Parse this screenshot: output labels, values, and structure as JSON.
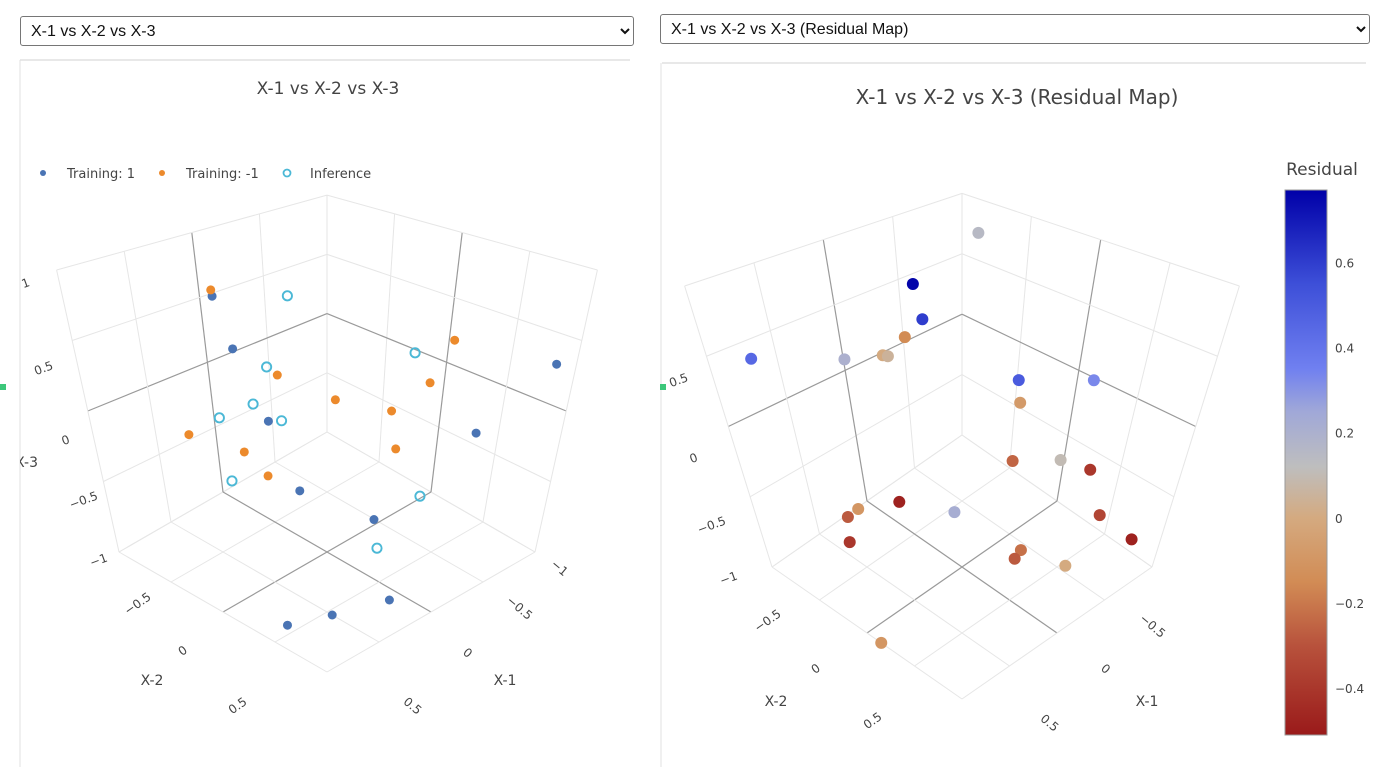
{
  "left_panel": {
    "dropdown_value": "X-1 vs X-2 vs X-3",
    "legend": [
      "Training: 1",
      "Training: -1",
      "Inference"
    ]
  },
  "right_panel": {
    "dropdown_value": "X-1 vs X-2 vs X-3 (Residual Map)",
    "colorbar_title": "Residual"
  },
  "colors": {
    "training_1": "#4a74b4",
    "training_neg1": "#ec8a2c",
    "inference": "#4bb8d6"
  },
  "chart_data": [
    {
      "type": "scatter",
      "projection": "3d",
      "title": "X-1 vs X-2 vs X-3",
      "xlabel": "X-1",
      "ylabel": "X-2",
      "zlabel": "X-3",
      "xlim": [
        -1,
        1
      ],
      "ylim": [
        -1,
        1
      ],
      "zlim": [
        -1,
        1
      ],
      "grid": true,
      "legend_position": "top-left",
      "x_ticks": [
        "−1",
        "−0.5",
        "0",
        "0.5"
      ],
      "y_ticks": [
        "−0.5",
        "0",
        "0.5"
      ],
      "z_ticks": [
        "1",
        "0.5",
        "0",
        "−0.5",
        "−1"
      ],
      "series": [
        {
          "name": "Training: 1",
          "marker": "filled-circle",
          "x": [
            0.41,
            0.31,
            0.35,
            0.34,
            0.14,
            0.1,
            0.5,
            0.8,
            -0.7,
            -0.99
          ],
          "y": [
            -0.46,
            -0.44,
            -0.14,
            0.1,
            0.56,
            0.7,
            0.55,
            0.42,
            0.58,
            0.86
          ],
          "z": [
            0.8,
            0.4,
            0,
            -0.4,
            -0.5,
            -1,
            -1,
            -1,
            -0.2,
            0.29
          ]
        },
        {
          "name": "Training: -1",
          "marker": "filled-circle",
          "x": [
            0.51,
            0.27,
            0.68,
            0.48,
            0.34,
            -0.15,
            -0.27,
            -0.2,
            -0.42,
            -0.33
          ],
          "y": [
            -0.36,
            -0.13,
            -0.49,
            -0.23,
            -0.18,
            -0.08,
            0.27,
            0.39,
            0.42,
            0.66
          ],
          "z": [
            0.9,
            0.3,
            -0.1,
            -0.2,
            -0.4,
            0,
            0,
            -0.2,
            0.2,
            0.6
          ]
        },
        {
          "name": "Inference",
          "marker": "open-circle",
          "x": [
            0.12,
            0.38,
            0.38,
            0.52,
            0.29,
            0.42,
            -0.37,
            -0.14,
            0.11
          ],
          "y": [
            -0.18,
            -0.1,
            -0.23,
            -0.38,
            -0.09,
            -0.43,
            0.33,
            0.68,
            0.57
          ],
          "z": [
            0.8,
            0.4,
            0.1,
            0,
            0,
            -0.5,
            0.4,
            -0.4,
            -0.7
          ]
        }
      ]
    },
    {
      "type": "scatter",
      "projection": "3d",
      "title": "X-1 vs X-2 vs X-3 (Residual Map)",
      "xlabel": "X-1",
      "ylabel": "X-2",
      "xlim": [
        -1,
        1
      ],
      "ylim": [
        -1,
        1
      ],
      "zlim": [
        -1,
        1
      ],
      "grid": true,
      "x_ticks": [
        "−0.5",
        "0",
        "0.5"
      ],
      "y_ticks": [
        "−0.5",
        "0",
        "0.5"
      ],
      "z_ticks": [
        "0.5",
        "0",
        "−0.5",
        "−1"
      ],
      "colorbar": {
        "title": "Residual",
        "range": [
          -0.51,
          0.77
        ],
        "ticks": [
          "0.6",
          "0.4",
          "0.2",
          "0",
          "−0.2",
          "−0.4"
        ],
        "tick_values": [
          0.6,
          0.4,
          0.2,
          0,
          -0.2,
          -0.4
        ],
        "colorscale": "red-tan-gray-blue"
      },
      "points": {
        "x": [
          -0.77,
          0.01,
          0.06,
          0.17,
          0.3,
          0.29,
          0.49,
          0.85,
          -0.27,
          -0.43,
          -0.2,
          -0.17,
          -0.26,
          -0.44,
          -0.5,
          -0.72,
          0.45,
          0.28,
          0.59,
          0.6,
          0.59,
          -0.09,
          -0.11,
          -0.31,
          1.0
        ],
        "y": [
          -0.65,
          -0.35,
          -0.24,
          -0.27,
          -0.32,
          -0.29,
          -0.43,
          -0.8,
          0.19,
          0.62,
          0.28,
          0.28,
          0.6,
          0.7,
          0.8,
          0.95,
          -0.13,
          0.21,
          -0.39,
          -0.5,
          -0.54,
          0.49,
          0.42,
          0.73,
          0.15
        ],
        "z": [
          0.9,
          0.9,
          0.7,
          0.6,
          0.5,
          0.5,
          0.5,
          0.5,
          0.3,
          0.4,
          0.2,
          -0.2,
          -0.1,
          -0.2,
          -0.5,
          -0.7,
          -0.4,
          -0.4,
          -0.5,
          -0.6,
          -0.8,
          -0.7,
          -0.8,
          -0.8,
          -1
        ],
        "residual": [
          0.15,
          0.76,
          0.6,
          -0.15,
          0.0,
          0.05,
          0.2,
          0.45,
          0.5,
          0.33,
          -0.08,
          -0.25,
          0.1,
          -0.4,
          -0.35,
          -0.48,
          -0.48,
          0.22,
          -0.1,
          -0.28,
          -0.4,
          -0.22,
          -0.28,
          0.0,
          -0.1
        ]
      }
    }
  ]
}
